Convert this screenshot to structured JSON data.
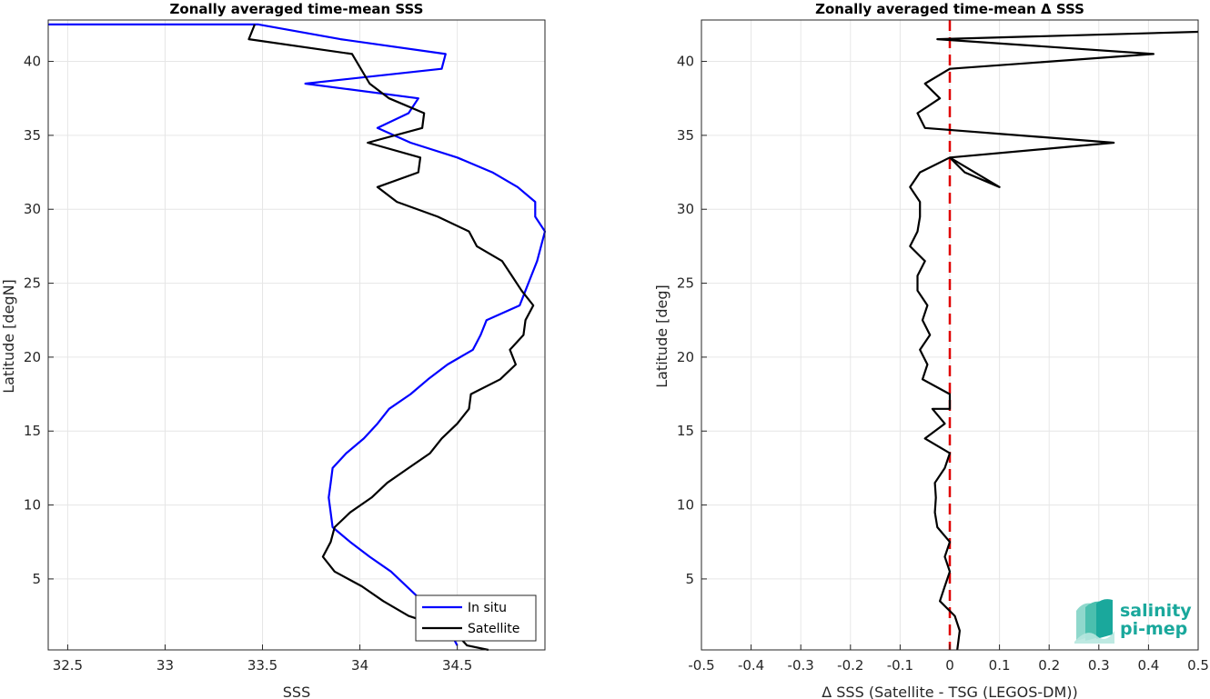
{
  "chart_data": [
    {
      "type": "line",
      "title": "Zonally averaged time-mean SSS",
      "xlabel": "SSS",
      "ylabel": "Latitude [degN]",
      "xlim": [
        32.4,
        34.95
      ],
      "ylim": [
        0.2,
        42.8
      ],
      "xticks": [
        32.5,
        33,
        33.5,
        34,
        34.5
      ],
      "xtick_labels": [
        "32.5",
        "33",
        "33.5",
        "34",
        "34.5"
      ],
      "yticks": [
        5,
        10,
        15,
        20,
        25,
        30,
        35,
        40
      ],
      "ytick_labels": [
        "5",
        "10",
        "15",
        "20",
        "25",
        "30",
        "35",
        "40"
      ],
      "grid": true,
      "legend_position": "bottom-right",
      "series": [
        {
          "name": "In situ",
          "color": "#0000ff",
          "x": [
            34.5,
            34.42,
            34.32,
            34.16,
            34.05,
            33.95,
            33.86,
            33.84,
            33.85,
            33.86,
            33.93,
            34.02,
            34.09,
            34.15,
            34.26,
            34.35,
            34.45,
            34.58,
            34.62,
            34.65,
            34.82,
            34.85,
            34.88,
            34.91,
            34.93,
            34.95,
            34.9,
            34.9,
            34.81,
            34.68,
            34.5,
            34.26,
            34.09,
            34.25,
            34.3,
            33.72,
            34.42,
            34.44,
            33.9,
            33.48,
            33.43,
            32.4
          ],
          "y": [
            0.5,
            2.5,
            3.5,
            5.5,
            6.5,
            7.5,
            8.5,
            10.5,
            11.5,
            12.5,
            13.5,
            14.5,
            15.5,
            16.5,
            17.5,
            18.5,
            19.5,
            20.5,
            21.5,
            22.5,
            23.5,
            24.5,
            25.5,
            26.5,
            27.5,
            28.5,
            29.5,
            30.5,
            31.5,
            32.5,
            33.5,
            34.5,
            35.5,
            36.5,
            37.5,
            38.5,
            39.5,
            40.5,
            41.5,
            42.5,
            42.5,
            42.5
          ]
        },
        {
          "name": "Satellite",
          "color": "#000000",
          "x": [
            34.66,
            34.55,
            34.48,
            34.25,
            34.12,
            34.01,
            33.87,
            33.81,
            33.85,
            33.87,
            33.95,
            34.06,
            34.14,
            34.25,
            34.36,
            34.42,
            34.5,
            34.56,
            34.57,
            34.72,
            34.8,
            34.77,
            34.84,
            34.85,
            34.89,
            34.83,
            34.78,
            34.73,
            34.6,
            34.56,
            34.4,
            34.19,
            34.09,
            34.3,
            34.31,
            34.04,
            34.32,
            34.33,
            34.15,
            34.05,
            33.96,
            33.43,
            33.46
          ],
          "y": [
            0.2,
            0.5,
            1.5,
            2.5,
            3.5,
            4.5,
            5.5,
            6.5,
            7.5,
            8.5,
            9.5,
            10.5,
            11.5,
            12.5,
            13.5,
            14.5,
            15.5,
            16.5,
            17.5,
            18.5,
            19.5,
            20.5,
            21.5,
            22.5,
            23.5,
            24.5,
            25.5,
            26.5,
            27.5,
            28.5,
            29.5,
            30.5,
            31.5,
            32.5,
            33.5,
            34.5,
            35.5,
            36.5,
            37.5,
            38.5,
            40.5,
            41.5,
            42.5
          ]
        }
      ]
    },
    {
      "type": "line",
      "title": "Zonally averaged time-mean Δ SSS",
      "xlabel": "Δ SSS (Satellite - TSG (LEGOS-DM))",
      "ylabel": "Latitude [deg]",
      "xlim": [
        -0.5,
        0.5
      ],
      "ylim": [
        0.2,
        42.8
      ],
      "xticks": [
        -0.5,
        -0.4,
        -0.3,
        -0.2,
        -0.1,
        0,
        0.1,
        0.2,
        0.3,
        0.4,
        0.5
      ],
      "xtick_labels": [
        "-0.5",
        "-0.4",
        "-0.3",
        "-0.2",
        "-0.1",
        "0",
        "0.1",
        "0.2",
        "0.3",
        "0.4",
        "0.5"
      ],
      "yticks": [
        5,
        10,
        15,
        20,
        25,
        30,
        35,
        40
      ],
      "ytick_labels": [
        "5",
        "10",
        "15",
        "20",
        "25",
        "30",
        "35",
        "40"
      ],
      "grid": true,
      "reference_line": {
        "x": 0,
        "color": "#e00000",
        "style": "dashed"
      },
      "series": [
        {
          "color": "#000000",
          "x": [
            0.015,
            0.02,
            0.01,
            -0.02,
            -0.01,
            0.0,
            -0.01,
            0.0,
            -0.025,
            -0.03,
            -0.028,
            -0.03,
            -0.01,
            0.0,
            -0.05,
            -0.01,
            -0.035,
            0.0,
            0.0,
            -0.055,
            -0.045,
            -0.06,
            -0.04,
            -0.055,
            -0.045,
            -0.065,
            -0.065,
            -0.05,
            -0.08,
            -0.065,
            -0.06,
            -0.06,
            -0.08,
            -0.06,
            0.0,
            0.1,
            0.03,
            0.0,
            0.33,
            -0.05,
            -0.065,
            -0.02,
            -0.05,
            0.0,
            0.41,
            -0.025,
            0.5
          ],
          "y": [
            0.2,
            1.5,
            2.5,
            3.5,
            4.5,
            5.5,
            6.5,
            7.5,
            8.5,
            9.5,
            10.5,
            11.5,
            12.5,
            13.5,
            14.5,
            15.5,
            16.5,
            16.5,
            17.5,
            18.5,
            19.5,
            20.5,
            21.5,
            22.5,
            23.5,
            24.5,
            25.5,
            26.5,
            27.5,
            28.5,
            29.5,
            30.5,
            31.5,
            32.5,
            33.5,
            31.5,
            32.5,
            33.5,
            34.5,
            35.5,
            36.5,
            37.5,
            38.5,
            39.5,
            40.5,
            41.5,
            42.0
          ]
        }
      ]
    }
  ],
  "logo": {
    "line1": "salinity",
    "line2": "pi-mep",
    "color": "#1aa89c"
  }
}
